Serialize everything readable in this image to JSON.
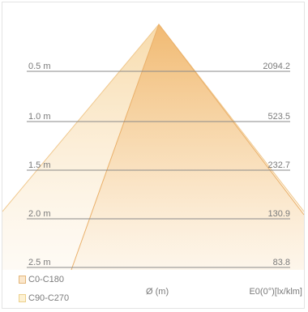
{
  "distances": [
    {
      "label": "0.5 m",
      "value": "2094.2"
    },
    {
      "label": "1.0 m",
      "value": "523.5"
    },
    {
      "label": "1.5 m",
      "value": "232.7"
    },
    {
      "label": "2.0 m",
      "value": "130.9"
    },
    {
      "label": "2.5 m",
      "value": "83.8"
    }
  ],
  "legend": [
    {
      "label": "C0-C180",
      "color": "#f2c183"
    },
    {
      "label": "C90-C270",
      "color": "#f7dca0"
    }
  ],
  "x_label": "Ø (m)",
  "value_label": "E0(0°)[lx/klm]",
  "colors": {
    "beam_c0": "#f2b56c",
    "beam_c90": "#f6d59a",
    "grid": "#8a8a8a",
    "text": "#7a7a7a"
  }
}
